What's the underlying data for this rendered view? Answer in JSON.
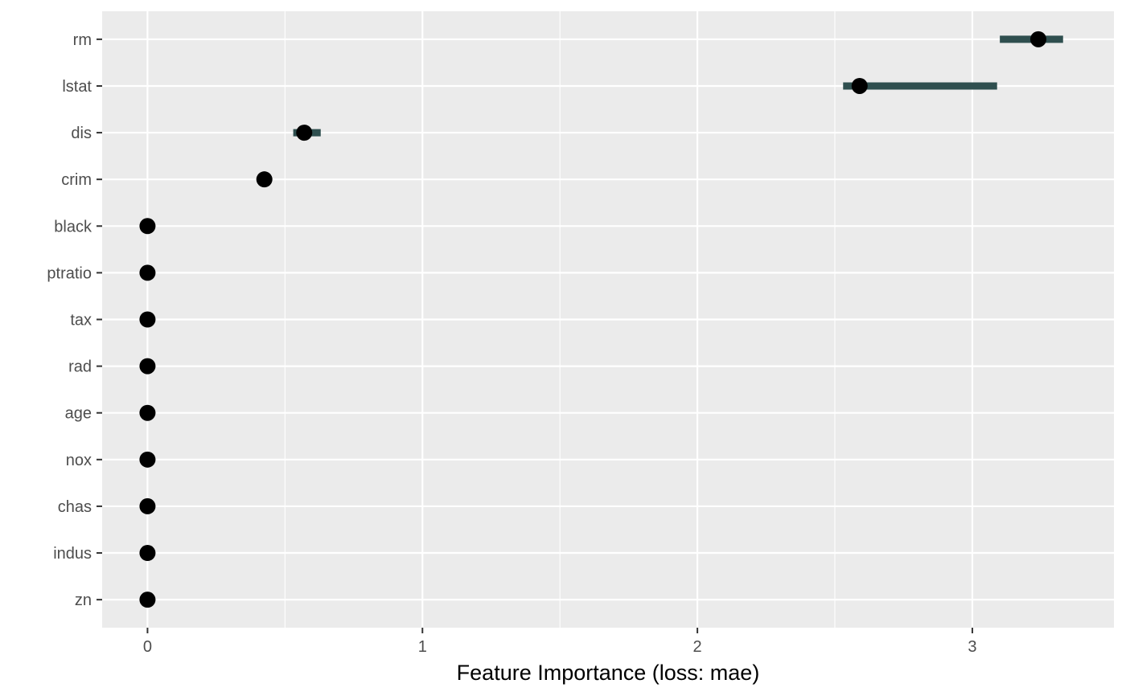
{
  "chart_data": {
    "type": "dot-interval",
    "title": "",
    "xlabel": "Feature Importance (loss: mae)",
    "ylabel": "",
    "xlim": [
      -0.165,
      3.515
    ],
    "x_ticks": [
      0,
      1,
      2,
      3
    ],
    "grid": true,
    "legend": "none",
    "features": [
      {
        "label": "rm",
        "value": 3.24,
        "lower": 3.1,
        "upper": 3.33
      },
      {
        "label": "lstat",
        "value": 2.59,
        "lower": 2.53,
        "upper": 3.09
      },
      {
        "label": "dis",
        "value": 0.57,
        "lower": 0.53,
        "upper": 0.63
      },
      {
        "label": "crim",
        "value": 0.425,
        "lower": 0.425,
        "upper": 0.425
      },
      {
        "label": "black",
        "value": 0,
        "lower": 0,
        "upper": 0
      },
      {
        "label": "ptratio",
        "value": 0,
        "lower": 0,
        "upper": 0
      },
      {
        "label": "tax",
        "value": 0,
        "lower": 0,
        "upper": 0
      },
      {
        "label": "rad",
        "value": 0,
        "lower": 0,
        "upper": 0
      },
      {
        "label": "age",
        "value": 0,
        "lower": 0,
        "upper": 0
      },
      {
        "label": "nox",
        "value": 0,
        "lower": 0,
        "upper": 0
      },
      {
        "label": "chas",
        "value": 0,
        "lower": 0,
        "upper": 0
      },
      {
        "label": "indus",
        "value": 0,
        "lower": 0,
        "upper": 0
      },
      {
        "label": "zn",
        "value": 0,
        "lower": 0,
        "upper": 0
      }
    ],
    "colors": {
      "panel": "#ebebeb",
      "grid": "#ffffff",
      "interval": "#2f4f4f",
      "point": "#000000",
      "tick": "#333333"
    }
  }
}
